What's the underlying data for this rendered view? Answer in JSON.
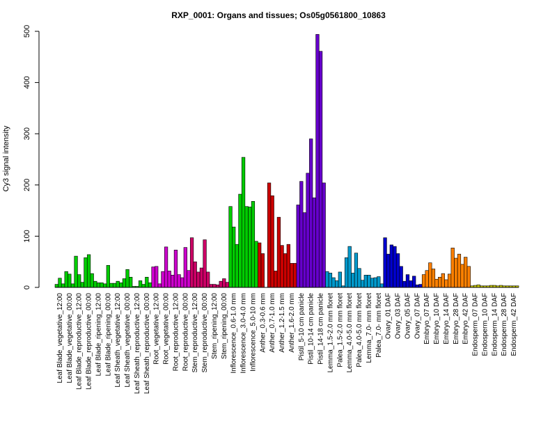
{
  "chart_data": {
    "type": "bar",
    "title": "RXP_0001: Organs and tissues; Os05g0561800_10863",
    "ylabel": "Cy3 signal intensity",
    "xlabel": "",
    "ylim": [
      0,
      500
    ],
    "yticks": [
      0,
      100,
      200,
      300,
      400,
      500
    ],
    "grid": false,
    "legend": "none",
    "groups": [
      {
        "label": "Leaf Blade_vegetative_12:00",
        "color": "#00cc00",
        "values": [
          6,
          18,
          7
        ]
      },
      {
        "label": "Leaf Blade_vegetative_00:00",
        "color": "#00cc00",
        "values": [
          31,
          26,
          7
        ]
      },
      {
        "label": "Leaf Blade_reproductive_12:00",
        "color": "#00cc00",
        "values": [
          61,
          25,
          10
        ]
      },
      {
        "label": "Leaf Blade_reproductive_00:00",
        "color": "#00cc00",
        "values": [
          58,
          64,
          27
        ]
      },
      {
        "label": "Leaf Blade_ripening_12:00",
        "color": "#00cc00",
        "values": [
          12,
          9,
          9
        ]
      },
      {
        "label": "Leaf Blade_ripening_00:00",
        "color": "#00cc00",
        "values": [
          7,
          43,
          8
        ]
      },
      {
        "label": "Leaf Sheath_vegetative_12:00",
        "color": "#00cc00",
        "values": [
          8,
          12,
          9
        ]
      },
      {
        "label": "Leaf Sheath_vegetative_00:00",
        "color": "#00cc00",
        "values": [
          17,
          35,
          20
        ]
      },
      {
        "label": "Leaf Sheath_reproductive_12:00",
        "color": "#00cc00",
        "values": [
          2,
          2,
          13
        ]
      },
      {
        "label": "Leaf Sheath_reproductive_00:00",
        "color": "#00cc00",
        "values": [
          6,
          20,
          9
        ]
      },
      {
        "label": "Root_vegetative_12:00",
        "color": "#cc00cc",
        "values": [
          40,
          41,
          7
        ]
      },
      {
        "label": "Root_vegetative_00:00",
        "color": "#cc00cc",
        "values": [
          31,
          79,
          32
        ]
      },
      {
        "label": "Root_reproductive_12:00",
        "color": "#cc00cc",
        "values": [
          24,
          73,
          25
        ]
      },
      {
        "label": "Root_reproductive_00:00",
        "color": "#cc00cc",
        "values": [
          19,
          78,
          33
        ]
      },
      {
        "label": "Stem_reproductive_12:00",
        "color": "#cc0066",
        "values": [
          97,
          50,
          30
        ]
      },
      {
        "label": "Stem_reproductive_00:00",
        "color": "#cc0066",
        "values": [
          38,
          93,
          30
        ]
      },
      {
        "label": "Stem_ripening_12:00",
        "color": "#cc0066",
        "values": [
          6,
          6,
          5
        ]
      },
      {
        "label": "Stem_ripening_00:00",
        "color": "#cc0066",
        "values": [
          12,
          17,
          10
        ]
      },
      {
        "label": "Inflorescence_0.6-1.0 mm",
        "color": "#00cc00",
        "values": [
          158,
          118,
          84
        ]
      },
      {
        "label": "Inflorescence_3.0-4.0 mm",
        "color": "#00cc00",
        "values": [
          182,
          254,
          158
        ]
      },
      {
        "label": "Inflorescence_5.0-10 mm",
        "color": "#00cc00",
        "values": [
          157,
          168,
          90
        ]
      },
      {
        "label": "Anther_0.3-0.6 mm",
        "color": "#cc0000",
        "values": [
          87,
          66,
          0
        ]
      },
      {
        "label": "Anther_0.7-1.0 mm",
        "color": "#cc0000",
        "values": [
          204,
          179,
          32
        ]
      },
      {
        "label": "Anther_1.2-1.5 mm",
        "color": "#cc0000",
        "values": [
          137,
          82,
          66
        ]
      },
      {
        "label": "Anther_1.6-2.0 mm",
        "color": "#cc0000",
        "values": [
          84,
          47,
          47
        ]
      },
      {
        "label": "Pistil_5-10 cm panicle",
        "color": "#6600cc",
        "values": [
          161,
          207,
          146
        ]
      },
      {
        "label": "Pistil_10-14 cm panicle",
        "color": "#6600cc",
        "values": [
          223,
          290,
          175
        ]
      },
      {
        "label": "Pistil_14-18 cm panicle",
        "color": "#6600cc",
        "values": [
          494,
          461,
          204
        ]
      },
      {
        "label": "Lemma_1.5-2.0 mm floret",
        "color": "#0099cc",
        "values": [
          31,
          28,
          19
        ]
      },
      {
        "label": "Palea_1.5-2.0 mm floret",
        "color": "#0099cc",
        "values": [
          13,
          30,
          3
        ]
      },
      {
        "label": "Lemma_4.0-5.0 mm floret",
        "color": "#0099cc",
        "values": [
          58,
          80,
          28
        ]
      },
      {
        "label": "Palea_4.0-5.0 mm floret",
        "color": "#0099cc",
        "values": [
          67,
          37,
          14
        ]
      },
      {
        "label": "Lemma_7.0- mm floret",
        "color": "#0099cc",
        "values": [
          24,
          24,
          18
        ]
      },
      {
        "label": "Palea_7.0- mm floret",
        "color": "#0099cc",
        "values": [
          19,
          21,
          7
        ]
      },
      {
        "label": "Ovary_01 DAF",
        "color": "#0000cc",
        "values": [
          97,
          65,
          83
        ]
      },
      {
        "label": "Ovary_03 DAF",
        "color": "#0000cc",
        "values": [
          80,
          66,
          41
        ]
      },
      {
        "label": "Ovary_05 DAF",
        "color": "#0000cc",
        "values": [
          12,
          25,
          13
        ]
      },
      {
        "label": "Ovary_07 DAF",
        "color": "#0000cc",
        "values": [
          22,
          5,
          6
        ]
      },
      {
        "label": "Embryo_07 DAF",
        "color": "#ff8000",
        "values": [
          25,
          33,
          48
        ]
      },
      {
        "label": "Embryo_10 DAF",
        "color": "#ff8000",
        "values": [
          36,
          16,
          20
        ]
      },
      {
        "label": "Embryo_14 DAF",
        "color": "#ff8000",
        "values": [
          27,
          15,
          26
        ]
      },
      {
        "label": "Embryo_28 DAF",
        "color": "#ff8000",
        "values": [
          77,
          57,
          65
        ]
      },
      {
        "label": "Embryo_42 DAF",
        "color": "#ff8000",
        "values": [
          45,
          59,
          41
        ]
      },
      {
        "label": "Endosperm_07 DAF",
        "color": "#cccc00",
        "values": [
          3,
          4,
          5
        ]
      },
      {
        "label": "Endosperm_10 DAF",
        "color": "#cccc00",
        "values": [
          3,
          3,
          3
        ]
      },
      {
        "label": "Endosperm_14 DAF",
        "color": "#cccc00",
        "values": [
          4,
          4,
          3
        ]
      },
      {
        "label": "Endosperm_28 DAF",
        "color": "#cccc00",
        "values": [
          4,
          3,
          3
        ]
      },
      {
        "label": "Endosperm_42 DAF",
        "color": "#cccc00",
        "values": [
          3,
          3,
          3
        ]
      }
    ]
  }
}
